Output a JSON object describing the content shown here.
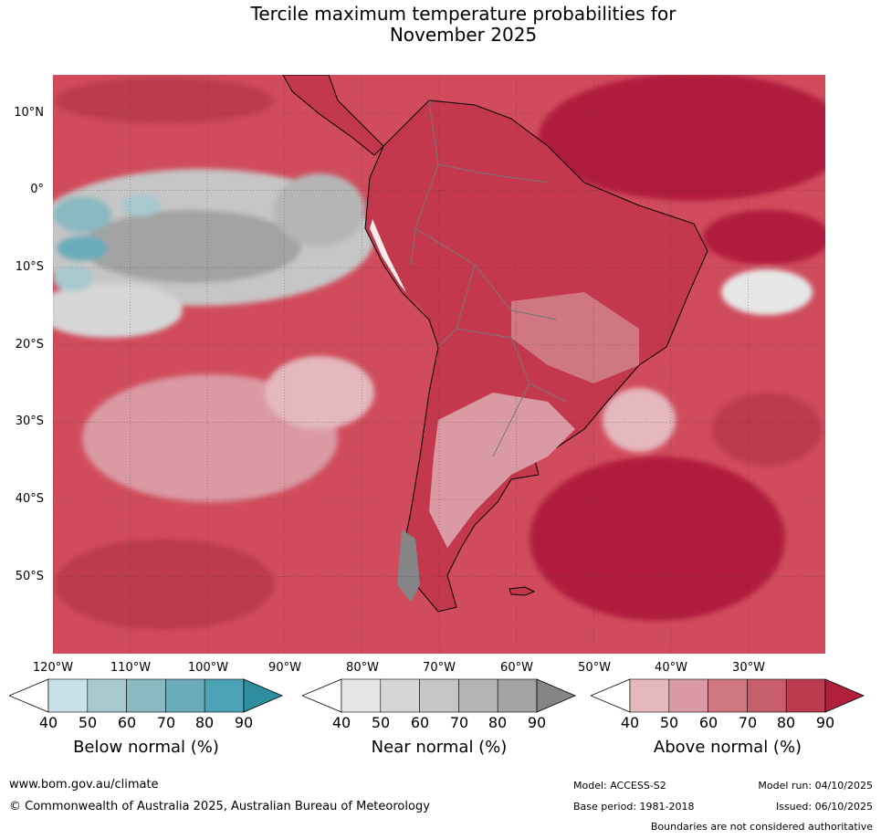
{
  "title": {
    "line1": "Tercile maximum temperature probabilities for",
    "line2": "November 2025"
  },
  "map": {
    "lat_labels": [
      "10°N",
      "0°",
      "10°S",
      "20°S",
      "30°S",
      "40°S",
      "50°S"
    ],
    "lon_labels": [
      "120°W",
      "110°W",
      "100°W",
      "90°W",
      "80°W",
      "70°W",
      "60°W",
      "50°W",
      "40°W",
      "30°W"
    ],
    "ocean_base_color": "#d04c5c",
    "land_base_color": "#c3384c"
  },
  "colorbars": [
    {
      "title": "Below normal (%)",
      "ticks": [
        "40",
        "50",
        "60",
        "70",
        "80",
        "90"
      ],
      "colors": [
        "#ffffff",
        "#c9e1e8",
        "#a7c8cf",
        "#8ab9c2",
        "#6aacbb",
        "#4ba3b5",
        "#2f8da0"
      ]
    },
    {
      "title": "Near normal (%)",
      "ticks": [
        "40",
        "50",
        "60",
        "70",
        "80",
        "90"
      ],
      "colors": [
        "#ffffff",
        "#e6e6e6",
        "#d6d6d6",
        "#c6c6c6",
        "#b5b5b5",
        "#a3a3a3",
        "#858585"
      ]
    },
    {
      "title": "Above normal (%)",
      "ticks": [
        "40",
        "50",
        "60",
        "70",
        "80",
        "90"
      ],
      "colors": [
        "#ffffff",
        "#e4b8bd",
        "#d99aa3",
        "#cf7882",
        "#c65e6b",
        "#bc3b4e",
        "#b01f3c"
      ]
    }
  ],
  "footer": {
    "website": "www.bom.gov.au/climate",
    "copyright": "© Commonwealth of Australia 2025, Australian Bureau of Meteorology",
    "model": "Model: ACCESS-S2",
    "base_period": "Base period: 1981-2018",
    "model_run": "Model run: 04/10/2025",
    "issued": "Issued: 06/10/2025",
    "disclaimer": "Boundaries are not considered authoritative"
  }
}
